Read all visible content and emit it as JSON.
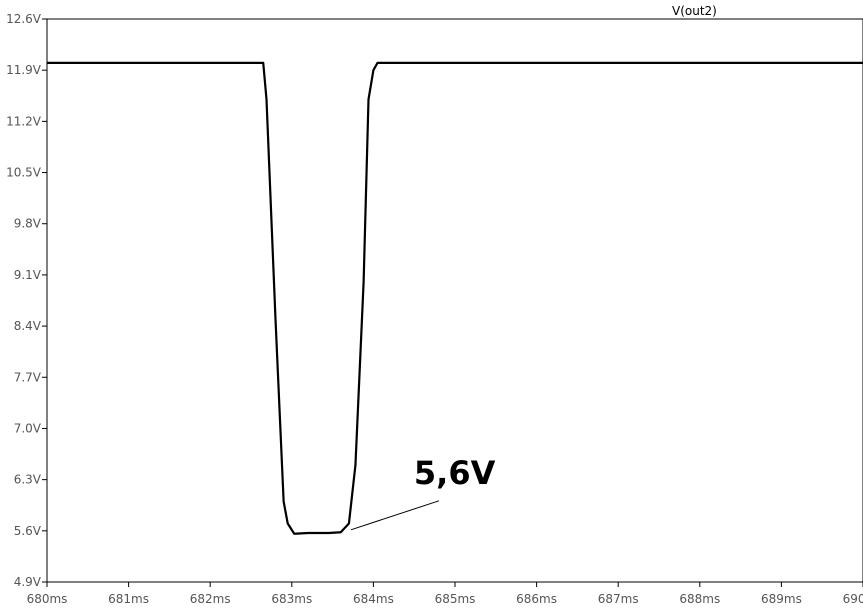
{
  "chart_data": {
    "type": "line",
    "title": "",
    "xlabel": "",
    "ylabel": "",
    "xlim": [
      680,
      690
    ],
    "ylim": [
      4.9,
      12.6
    ],
    "x_ticks": [
      680,
      681,
      682,
      683,
      684,
      685,
      686,
      687,
      688,
      689,
      690
    ],
    "x_tick_labels": [
      "680ms",
      "681ms",
      "682ms",
      "683ms",
      "684ms",
      "685ms",
      "686ms",
      "687ms",
      "688ms",
      "689ms",
      "690ms"
    ],
    "y_ticks": [
      4.9,
      5.6,
      6.3,
      7.0,
      7.7,
      8.4,
      9.1,
      9.8,
      10.5,
      11.2,
      11.9,
      12.6
    ],
    "y_tick_labels": [
      "4.9V",
      "5.6V",
      "6.3V",
      "7.0V",
      "7.7V",
      "8.4V",
      "9.1V",
      "9.8V",
      "10.5V",
      "11.2V",
      "11.9V",
      "12.6V"
    ],
    "grid": false,
    "series": [
      {
        "name": "V(out2)",
        "color": "#000000",
        "x": [
          680,
          682.65,
          682.69,
          682.8,
          682.9,
          682.95,
          683.03,
          683.2,
          683.45,
          683.6,
          683.7,
          683.78,
          683.88,
          683.94,
          684.0,
          684.05,
          690
        ],
        "y": [
          12.0,
          12.0,
          11.5,
          8.5,
          6.0,
          5.7,
          5.56,
          5.57,
          5.57,
          5.58,
          5.7,
          6.5,
          9.0,
          11.5,
          11.9,
          12.0,
          12.0
        ]
      }
    ],
    "annotations": [
      {
        "text": "5,6V",
        "points_to": {
          "x": 683.7,
          "y": 5.6
        }
      }
    ]
  }
}
